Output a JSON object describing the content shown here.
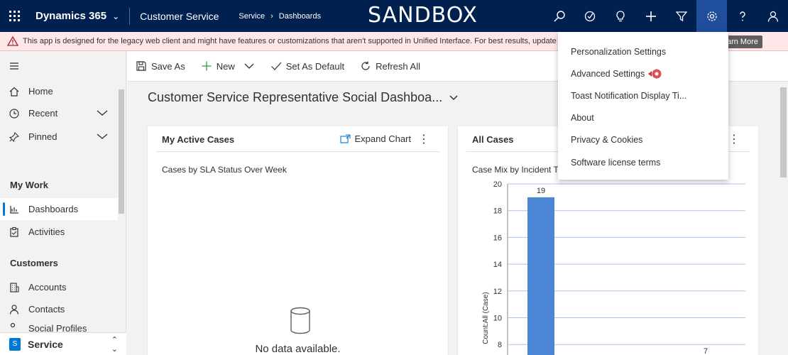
{
  "topbar": {
    "app_name": "Dynamics 365",
    "area": "Customer Service",
    "breadcrumb": [
      "Service",
      "Dashboards"
    ],
    "sandbox_label": "SANDBOX",
    "icons": [
      "search-icon",
      "assistant-icon",
      "lightbulb-icon",
      "plus-icon",
      "filter-icon",
      "gear-icon",
      "help-icon",
      "user-icon"
    ]
  },
  "warning": {
    "text": "This app is designed for the legacy web client and might have features or customizations that aren't supported in Unified Interface. For best results, update it to U",
    "button": "arn More"
  },
  "sidebar": {
    "nav": [
      {
        "label": "Home",
        "icon": "home-icon"
      },
      {
        "label": "Recent",
        "icon": "clock-icon"
      },
      {
        "label": "Pinned",
        "icon": "pin-icon"
      }
    ],
    "sections": [
      {
        "header": "My Work",
        "items": [
          {
            "label": "Dashboards",
            "icon": "dashboard-icon"
          },
          {
            "label": "Activities",
            "icon": "clipboard-icon"
          }
        ]
      },
      {
        "header": "Customers",
        "items": [
          {
            "label": "Accounts",
            "icon": "building-icon"
          },
          {
            "label": "Contacts",
            "icon": "person-icon"
          },
          {
            "label": "Social Profiles",
            "icon": "social-icon"
          }
        ]
      }
    ],
    "area_switcher": {
      "badge": "S",
      "label": "Service"
    }
  },
  "commands": {
    "save_as": "Save As",
    "new": "New",
    "set_default": "Set As Default",
    "refresh_all": "Refresh All"
  },
  "dashboard": {
    "title": "Customer Service Representative Social Dashboa..."
  },
  "card_left": {
    "title": "My Active Cases",
    "expand": "Expand Chart",
    "subtitle": "Cases by SLA Status Over Week",
    "nodata": "No data available."
  },
  "card_right": {
    "title": "All Cases",
    "subtitle": "Case Mix by Incident T"
  },
  "chart_data": {
    "type": "bar",
    "title": "Case Mix by Incident T",
    "ylabel": "Count:All (Case)",
    "xlabel": "",
    "ylim": [
      8,
      20
    ],
    "yticks": [
      20,
      18,
      16,
      14,
      12,
      10,
      8
    ],
    "values": [
      19,
      7
    ],
    "bar_color": "#4a86d4",
    "grid": true
  },
  "menu": {
    "items": [
      "Personalization Settings",
      "Advanced Settings",
      "Toast Notification Display Ti...",
      "About",
      "Privacy & Cookies",
      "Software license terms"
    ]
  }
}
